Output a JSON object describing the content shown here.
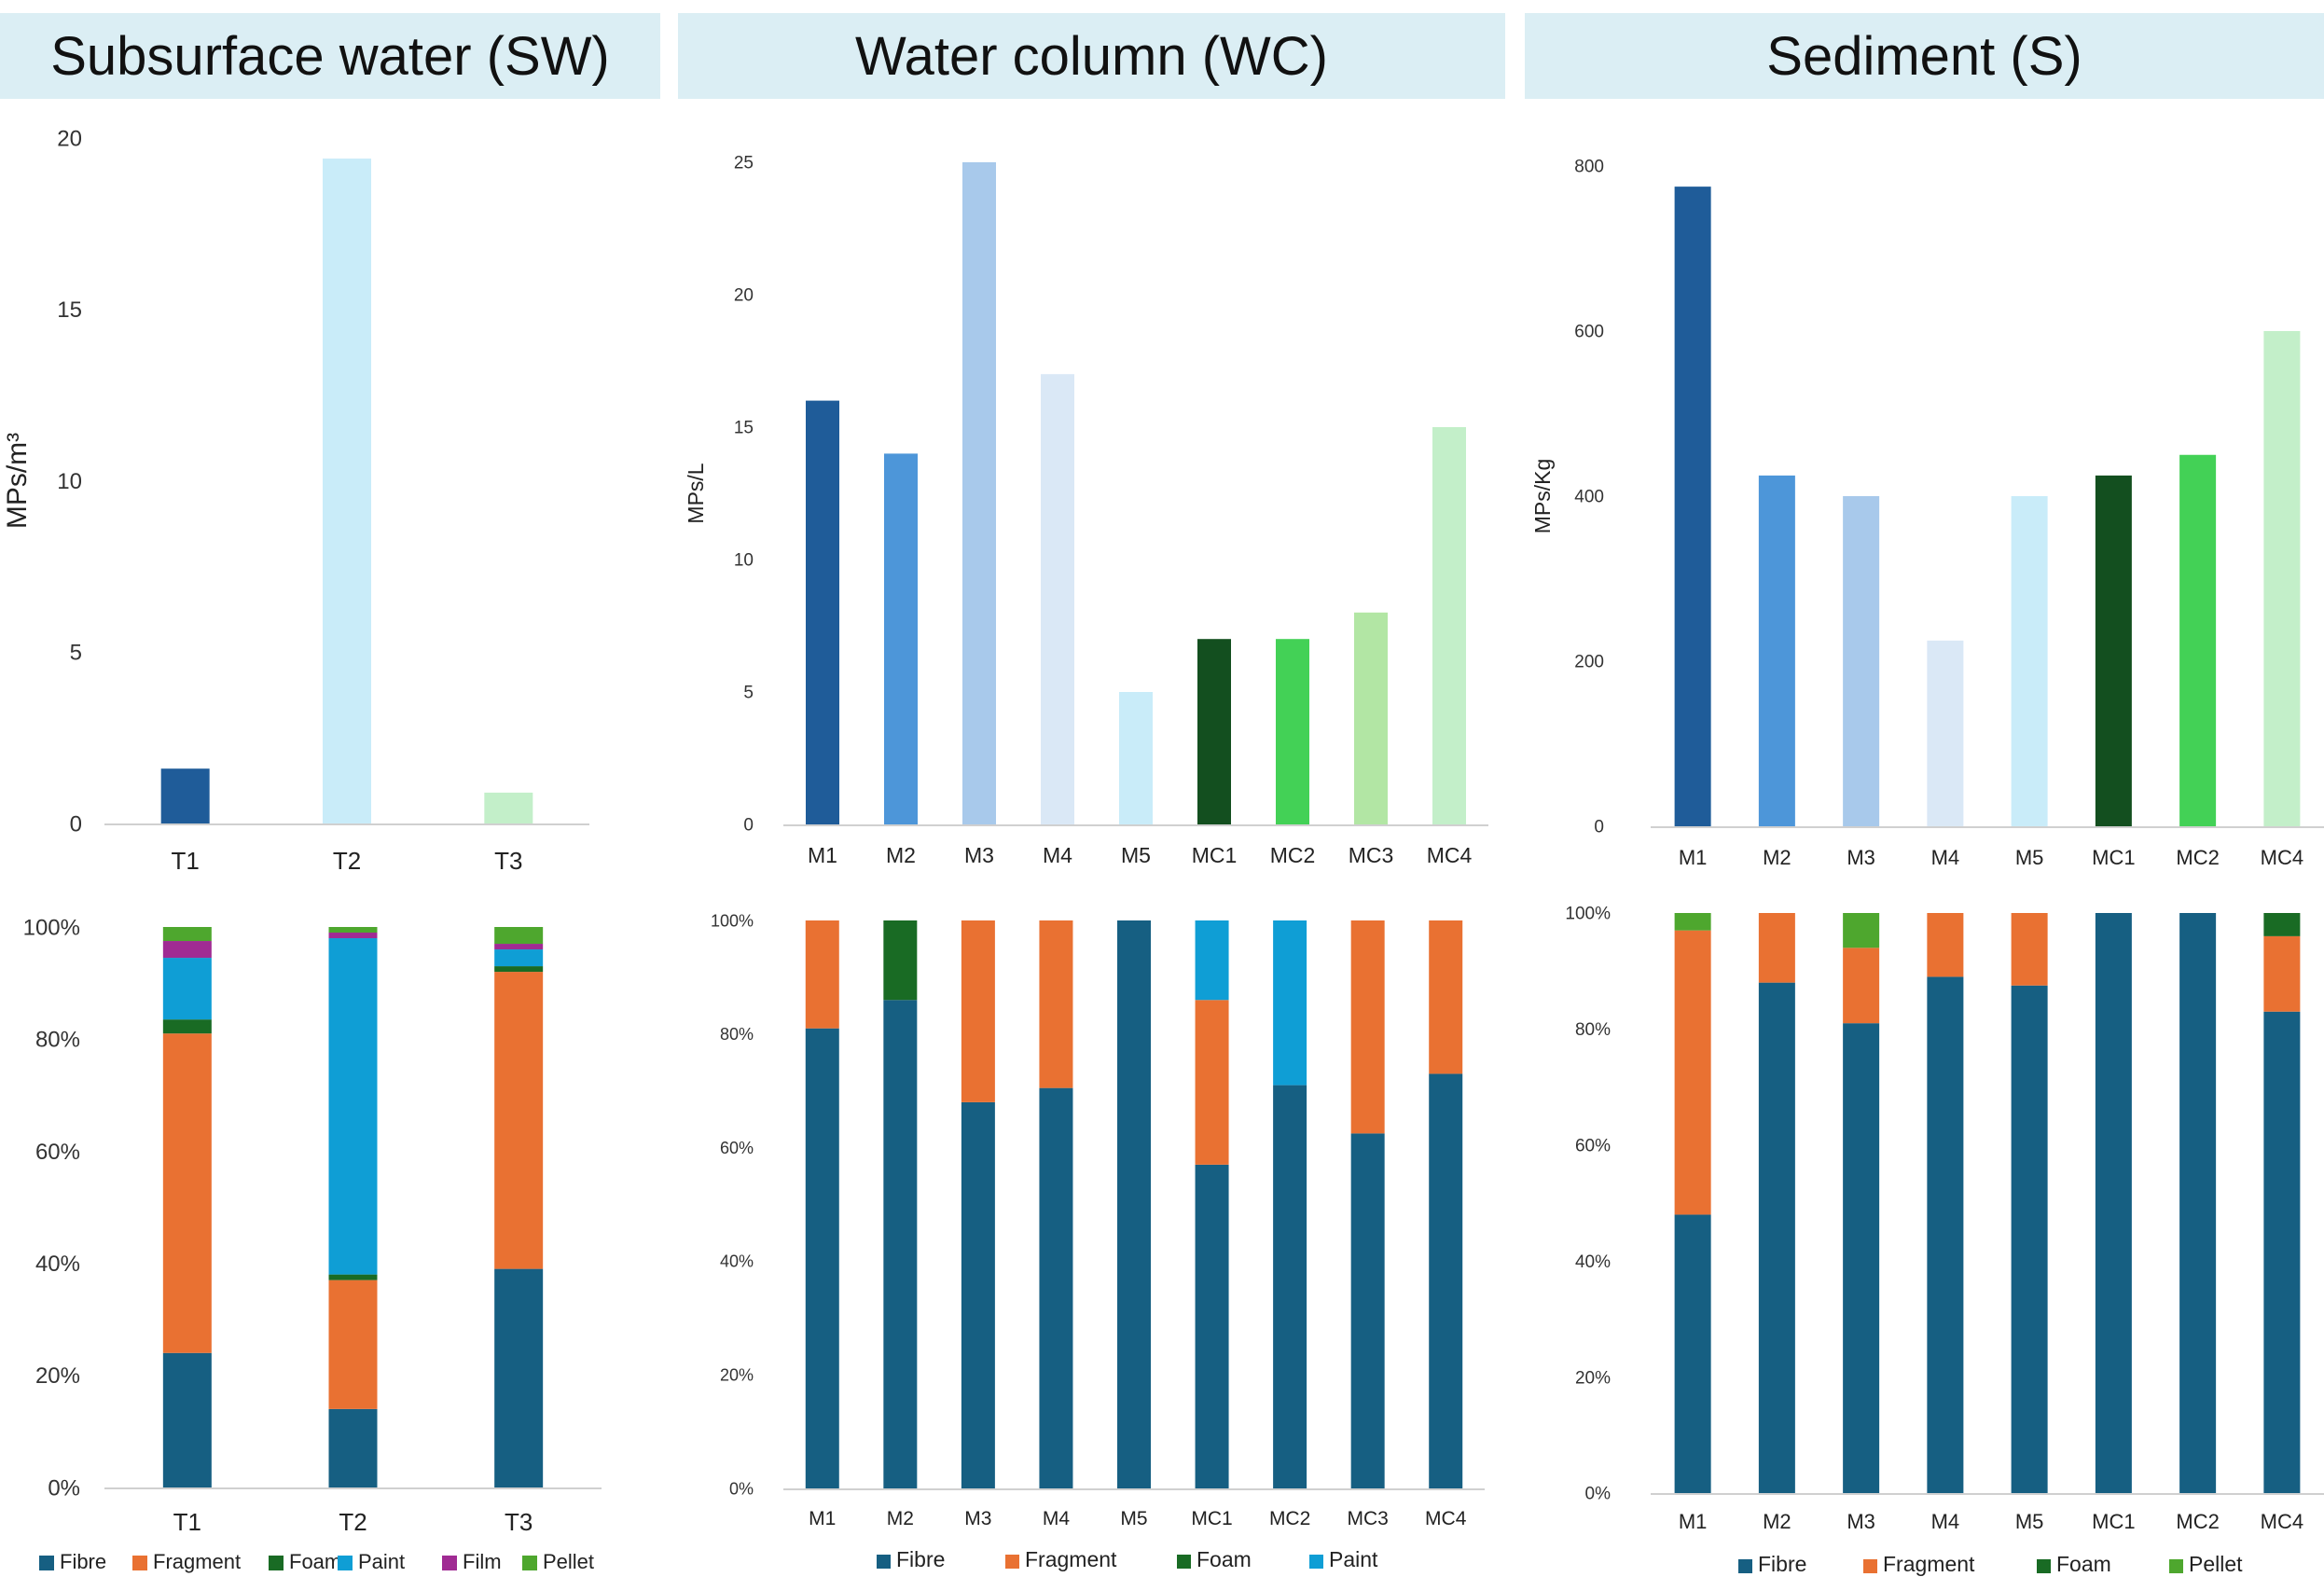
{
  "panels": [
    {
      "title": "Subsurface water (SW)"
    },
    {
      "title": "Water column (WC)"
    },
    {
      "title": "Sediment (S)"
    }
  ],
  "chart_data": [
    {
      "id": "sw-totals",
      "type": "bar",
      "categories": [
        "T1",
        "T2",
        "T3"
      ],
      "values": [
        1.6,
        19.4,
        0.9
      ],
      "colors": [
        "#1f5c99",
        "#c9ecf9",
        "#c3efc9"
      ],
      "ylabel": "MPs/m³",
      "ylim": [
        0,
        20
      ],
      "yticks": [
        0,
        5,
        10,
        15,
        20
      ]
    },
    {
      "id": "wc-totals",
      "type": "bar",
      "categories": [
        "M1",
        "M2",
        "M3",
        "M4",
        "M5",
        "MC1",
        "MC2",
        "MC3",
        "MC4"
      ],
      "values": [
        16,
        14,
        25,
        17,
        5,
        7,
        7,
        8,
        15
      ],
      "colors": [
        "#1f5c99",
        "#4d96d9",
        "#a8c9eb",
        "#dae8f6",
        "#c9ecf9",
        "#134f1f",
        "#43d156",
        "#b2e6a4",
        "#c3efc9"
      ],
      "ylabel": "MPs/L",
      "ylim": [
        0,
        25
      ],
      "yticks": [
        0,
        5,
        10,
        15,
        20,
        25
      ]
    },
    {
      "id": "s-totals",
      "type": "bar",
      "categories": [
        "M1",
        "M2",
        "M3",
        "M4",
        "M5",
        "MC1",
        "MC2",
        "MC4"
      ],
      "values": [
        775,
        425,
        400,
        225,
        400,
        425,
        450,
        600
      ],
      "colors": [
        "#1f5c99",
        "#4d96d9",
        "#a8c9eb",
        "#dae8f6",
        "#c9ecf9",
        "#134f1f",
        "#43d156",
        "#c3efc9"
      ],
      "ylabel": "MPs/Kg",
      "ylim": [
        0,
        800
      ],
      "yticks": [
        0,
        200,
        400,
        600,
        800
      ]
    },
    {
      "id": "sw-composition",
      "type": "bar",
      "stacked": true,
      "categories": [
        "T1",
        "T2",
        "T3"
      ],
      "ylim": [
        0,
        100
      ],
      "yticks": [
        "0%",
        "20%",
        "40%",
        "60%",
        "80%",
        "100%"
      ],
      "legend": "bottom",
      "series": [
        {
          "name": "Fibre",
          "color": "#165f82",
          "values": [
            24,
            14,
            39
          ]
        },
        {
          "name": "Fragment",
          "color": "#e97132",
          "values": [
            57,
            23,
            53
          ]
        },
        {
          "name": "Foam",
          "color": "#196b24",
          "values": [
            2.5,
            1,
            1
          ]
        },
        {
          "name": "Paint",
          "color": "#0f9ed5",
          "values": [
            11,
            60,
            3
          ]
        },
        {
          "name": "Film",
          "color": "#a02b93",
          "values": [
            3,
            1,
            1
          ]
        },
        {
          "name": "Pellet",
          "color": "#4ea72e",
          "values": [
            2.5,
            1,
            3
          ]
        }
      ]
    },
    {
      "id": "wc-composition",
      "type": "bar",
      "stacked": true,
      "categories": [
        "M1",
        "M2",
        "M3",
        "M4",
        "M5",
        "MC1",
        "MC2",
        "MC3",
        "MC4"
      ],
      "ylim": [
        0,
        100
      ],
      "yticks": [
        "0%",
        "20%",
        "40%",
        "60%",
        "80%",
        "100%"
      ],
      "legend": "bottom",
      "series": [
        {
          "name": "Fibre",
          "color": "#165f82",
          "values": [
            81,
            86,
            68,
            70.5,
            100,
            57,
            71,
            62.5,
            73
          ]
        },
        {
          "name": "Fragment",
          "color": "#e97132",
          "values": [
            19,
            0,
            32,
            29.5,
            0,
            29,
            0,
            37.5,
            27
          ]
        },
        {
          "name": "Foam",
          "color": "#196b24",
          "values": [
            0,
            14,
            0,
            0,
            0,
            0,
            0,
            0,
            0
          ]
        },
        {
          "name": "Paint",
          "color": "#0f9ed5",
          "values": [
            0,
            0,
            0,
            0,
            0,
            14,
            29,
            0,
            0
          ]
        }
      ]
    },
    {
      "id": "s-composition",
      "type": "bar",
      "stacked": true,
      "categories": [
        "M1",
        "M2",
        "M3",
        "M4",
        "M5",
        "MC1",
        "MC2",
        "MC4"
      ],
      "ylim": [
        0,
        100
      ],
      "yticks": [
        "0%",
        "20%",
        "40%",
        "60%",
        "80%",
        "100%"
      ],
      "legend": "bottom",
      "series": [
        {
          "name": "Fibre",
          "color": "#165f82",
          "values": [
            48,
            88,
            81,
            89,
            87.5,
            100,
            100,
            83
          ]
        },
        {
          "name": "Fragment",
          "color": "#e97132",
          "values": [
            49,
            12,
            13,
            11,
            12.5,
            0,
            0,
            13
          ]
        },
        {
          "name": "Foam",
          "color": "#196b24",
          "values": [
            0,
            0,
            0,
            0,
            0,
            0,
            0,
            4
          ]
        },
        {
          "name": "Pellet",
          "color": "#4ea72e",
          "values": [
            3,
            0,
            6,
            0,
            0,
            0,
            0,
            0
          ]
        }
      ]
    }
  ]
}
